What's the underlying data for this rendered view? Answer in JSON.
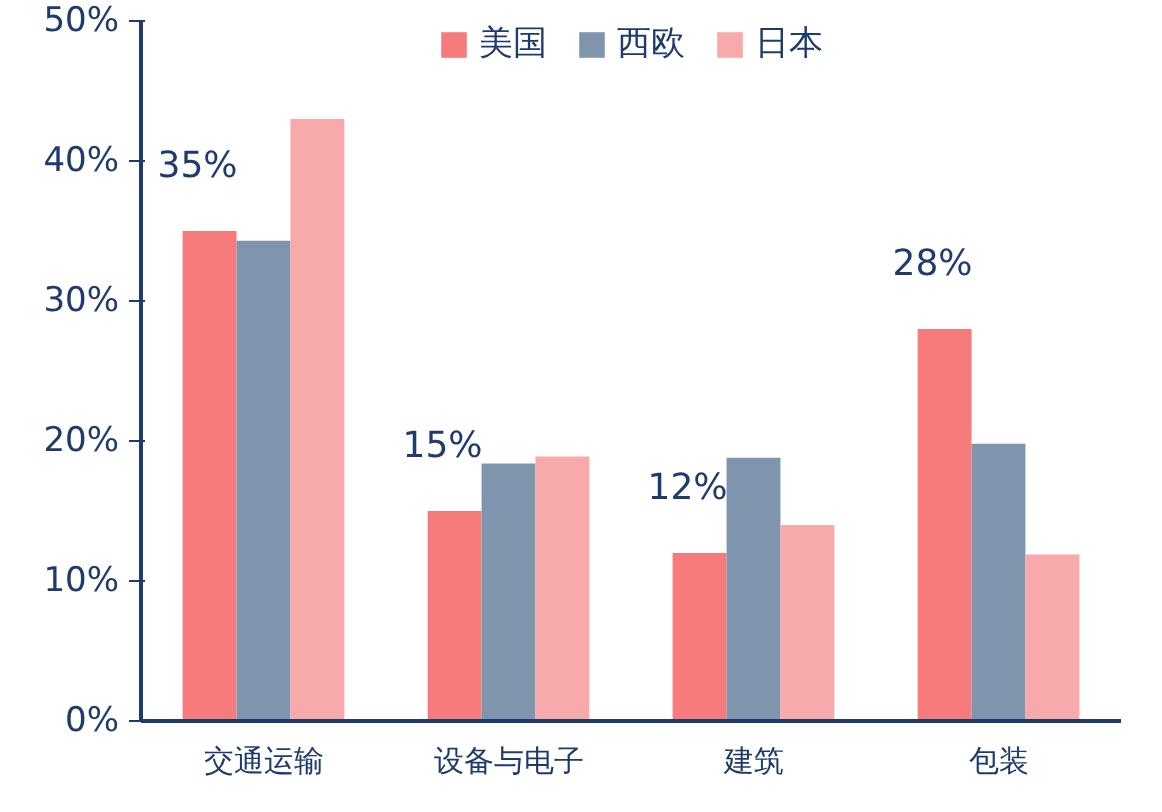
{
  "chart_data": {
    "type": "bar",
    "categories": [
      "交通运输",
      "设备与电子",
      "建筑",
      "包装"
    ],
    "series": [
      {
        "name": "美国",
        "color": "#f77b7b",
        "values": [
          35,
          15,
          12,
          28
        ],
        "value_labels": [
          "35%",
          "15%",
          "12%",
          "28%"
        ]
      },
      {
        "name": "西欧",
        "color": "#7f95ad",
        "values": [
          34.3,
          18.4,
          18.8,
          19.8
        ]
      },
      {
        "name": "日本",
        "color": "#f8a9aa",
        "values": [
          43,
          18.9,
          14,
          11.9
        ]
      }
    ],
    "ylim": [
      0,
      50
    ],
    "yticks": [
      {
        "value": 0,
        "label": "0%"
      },
      {
        "value": 10,
        "label": "10%"
      },
      {
        "value": 20,
        "label": "20%"
      },
      {
        "value": 30,
        "label": "30%"
      },
      {
        "value": 40,
        "label": "40%"
      },
      {
        "value": 50,
        "label": "50%"
      }
    ],
    "grid": false,
    "legend": "top"
  }
}
